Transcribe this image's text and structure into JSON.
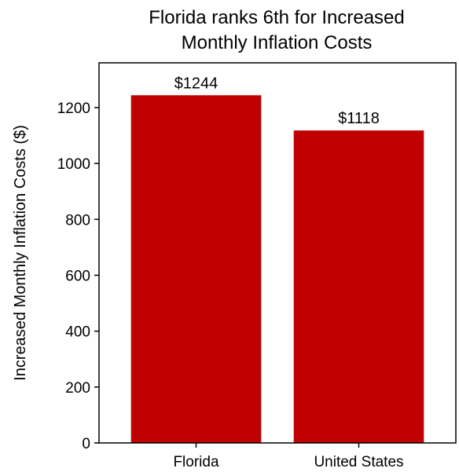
{
  "chart_data": {
    "type": "bar",
    "title_lines": [
      "Florida ranks 6th for Increased",
      "Monthly Inflation Costs"
    ],
    "xlabel": "",
    "ylabel": "Increased Monthly Inflation Costs ($)",
    "categories": [
      "Florida",
      "United States"
    ],
    "values": [
      1244,
      1118
    ],
    "value_labels": [
      "$1244",
      "$1118"
    ],
    "ylim": [
      0,
      1360
    ],
    "yticks": [
      0,
      200,
      400,
      600,
      800,
      1000,
      1200
    ],
    "ytick_labels": [
      "0",
      "200",
      "400",
      "600",
      "800",
      "1000",
      "1200"
    ],
    "bar_color": "#c00000",
    "grid": false,
    "legend": "none"
  }
}
